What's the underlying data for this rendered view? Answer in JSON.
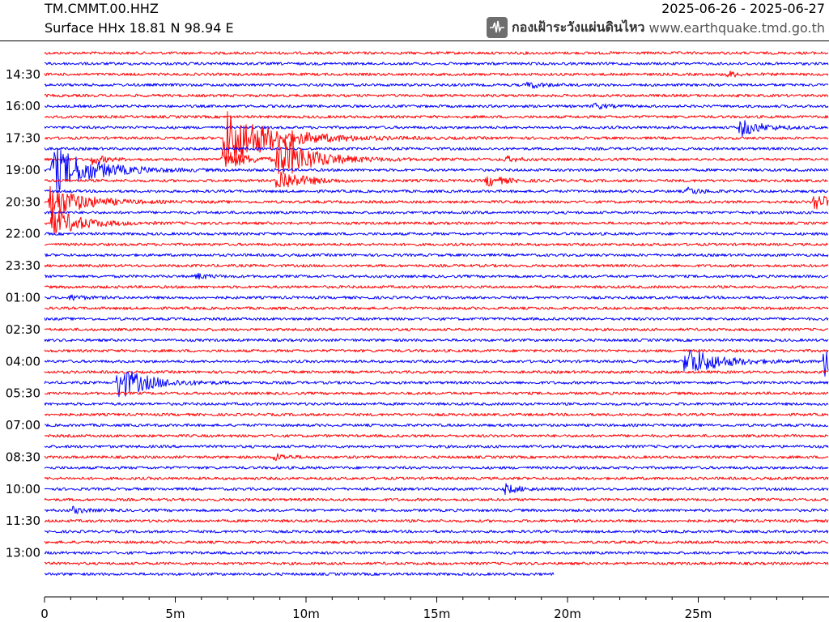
{
  "header": {
    "station": "TM.CMMT.00.HHZ",
    "component": "Surface HHx  18.81 N 98.94 E",
    "date_range": "2025-06-26 - 2025-06-27",
    "agency_thai": "กองเฝ้าระวังแผ่นดินไหว",
    "agency_url": "www.earthquake.tmd.go.th",
    "logo_icon": "seismograph-logo-icon"
  },
  "chart_data": {
    "type": "line",
    "title": "",
    "xlabel": "",
    "ylabel": "",
    "x_unit": "minutes",
    "xlim": [
      0,
      30
    ],
    "x_ticks": [
      0,
      5,
      10,
      15,
      20,
      25
    ],
    "x_tick_labels": [
      "0",
      "5m",
      "10m",
      "15m",
      "20m",
      "25m"
    ],
    "row_minutes": 30,
    "row_count": 50,
    "last_row_end_minutes": 19.5,
    "colors": [
      "#ff0000",
      "#0000ff"
    ],
    "y_tick_labels": [
      "14:30",
      "16:00",
      "17:30",
      "19:00",
      "20:30",
      "22:00",
      "23:30",
      "01:00",
      "02:30",
      "04:00",
      "05:30",
      "07:00",
      "08:30",
      "10:00",
      "11:30",
      "13:00"
    ],
    "y_tick_rows": [
      2,
      5,
      8,
      11,
      14,
      17,
      20,
      23,
      26,
      29,
      32,
      35,
      38,
      41,
      44,
      47
    ],
    "events": [
      {
        "row": 2,
        "minute": 26.1,
        "amplitude": 0.5
      },
      {
        "row": 3,
        "minute": 18.5,
        "amplitude": 0.6
      },
      {
        "row": 5,
        "minute": 21.0,
        "amplitude": 0.5
      },
      {
        "row": 7,
        "minute": 26.6,
        "amplitude": 1.5
      },
      {
        "row": 8,
        "minute": 6.9,
        "amplitude": 5.0
      },
      {
        "row": 10,
        "minute": 6.8,
        "amplitude": 1.8
      },
      {
        "row": 10,
        "minute": 1.8,
        "amplitude": 0.8
      },
      {
        "row": 10,
        "minute": 8.9,
        "amplitude": 3.5
      },
      {
        "row": 10,
        "minute": 9.4,
        "amplitude": 0.6
      },
      {
        "row": 10,
        "minute": 17.6,
        "amplitude": 0.5
      },
      {
        "row": 11,
        "minute": 0.3,
        "amplitude": 4.0
      },
      {
        "row": 12,
        "minute": 8.9,
        "amplitude": 2.0
      },
      {
        "row": 12,
        "minute": 16.9,
        "amplitude": 1.0
      },
      {
        "row": 13,
        "minute": 24.6,
        "amplitude": 0.6
      },
      {
        "row": 14,
        "minute": 0.2,
        "amplitude": 3.0
      },
      {
        "row": 14,
        "minute": 29.4,
        "amplitude": 1.5
      },
      {
        "row": 16,
        "minute": 0.3,
        "amplitude": 2.5
      },
      {
        "row": 21,
        "minute": 5.8,
        "amplitude": 0.5
      },
      {
        "row": 23,
        "minute": 1.0,
        "amplitude": 0.5
      },
      {
        "row": 29,
        "minute": 24.5,
        "amplitude": 2.8
      },
      {
        "row": 29,
        "minute": 29.8,
        "amplitude": 2.5
      },
      {
        "row": 31,
        "minute": 2.8,
        "amplitude": 2.8
      },
      {
        "row": 38,
        "minute": 8.8,
        "amplitude": 0.6
      },
      {
        "row": 41,
        "minute": 17.6,
        "amplitude": 0.8
      },
      {
        "row": 43,
        "minute": 1.0,
        "amplitude": 0.6
      }
    ]
  }
}
